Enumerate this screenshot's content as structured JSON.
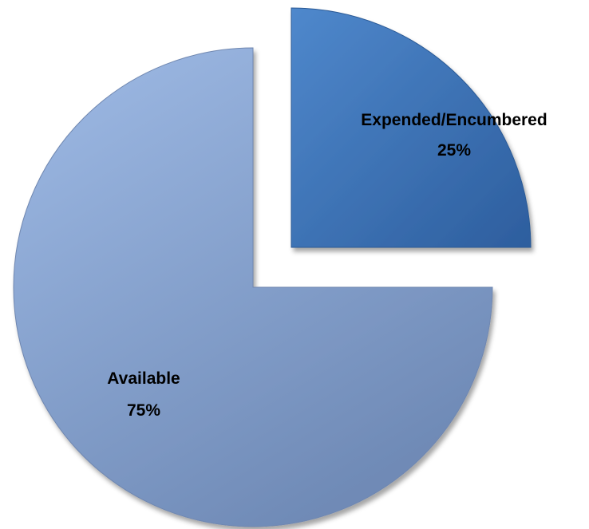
{
  "chart_data": {
    "type": "pie",
    "exploded": true,
    "legend": "none",
    "slices": [
      {
        "label": "Expended/Encumbered",
        "percent_label": "25%",
        "value": 25,
        "color": "#3A72B8"
      },
      {
        "label": "Available",
        "percent_label": "75%",
        "value": 75,
        "color": "#8DA9D6"
      }
    ]
  }
}
